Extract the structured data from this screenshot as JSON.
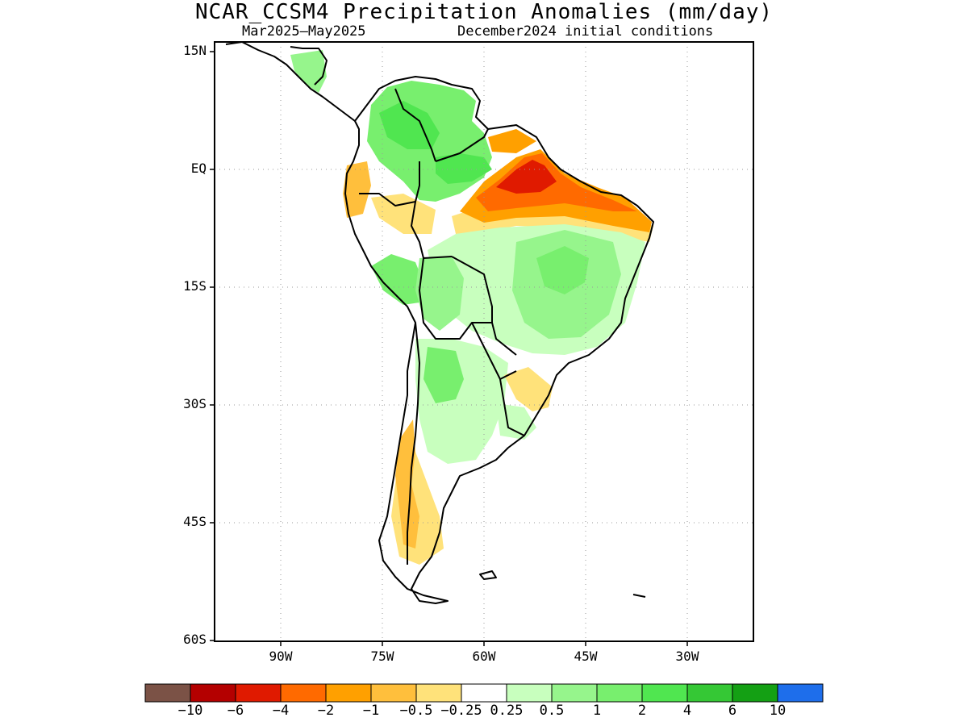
{
  "title": "NCAR_CCSM4 Precipitation Anomalies (mm/day)",
  "subtitle_left": "Mar2025—May2025",
  "subtitle_right": "December2024 initial conditions",
  "lat_labels": [
    "15N",
    "EQ",
    "15S",
    "30S",
    "45S",
    "60S"
  ],
  "lon_labels": [
    "90W",
    "75W",
    "60W",
    "45W",
    "30W"
  ],
  "colorbar": {
    "colors": [
      "#7b5246",
      "#b40000",
      "#e01a00",
      "#ff6a00",
      "#ffa000",
      "#ffbf3c",
      "#ffe27a",
      "#ffffff",
      "#c8ffbe",
      "#96f58c",
      "#78ef6e",
      "#50e650",
      "#35c835",
      "#14a014",
      "#1e6eeb"
    ],
    "labels": [
      "−10",
      "−6",
      "−4",
      "−2",
      "−1",
      "−0.5",
      "−0.25",
      "0.25",
      "0.5",
      "1",
      "2",
      "4",
      "6",
      "10"
    ]
  }
}
